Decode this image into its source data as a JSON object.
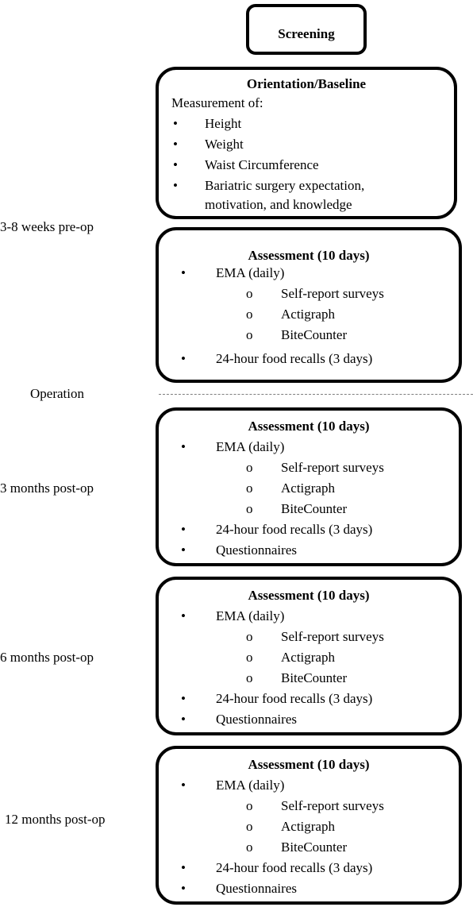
{
  "screening": {
    "title": "Screening"
  },
  "baseline": {
    "title": "Orientation/Baseline",
    "intro": "Measurement of:",
    "items": [
      "Height",
      "Weight",
      "Waist Circumference",
      "Bariatric surgery expectation,",
      "motivation, and knowledge"
    ]
  },
  "bullet": "•",
  "sub_bullet": "o",
  "timepoints": {
    "pre_op": "3-8 weeks pre-op",
    "operation": "Operation",
    "post_3": "3 months post-op",
    "post_6": "6 months post-op",
    "post_12": "12 months post-op"
  },
  "assessments": [
    {
      "title": "Assessment (10 days)",
      "ema": "EMA (daily)",
      "sub": [
        "Self-report surveys",
        "Actigraph",
        "BiteCounter"
      ],
      "recalls": "24-hour food recalls (3 days)"
    },
    {
      "title": "Assessment (10 days)",
      "ema": "EMA (daily)",
      "sub": [
        "Self-report surveys",
        "Actigraph",
        "BiteCounter"
      ],
      "recalls": "24-hour food recalls (3 days)",
      "questionnaires": "Questionnaires"
    },
    {
      "title": "Assessment (10 days)",
      "ema": "EMA (daily)",
      "sub": [
        "Self-report surveys",
        "Actigraph",
        "BiteCounter"
      ],
      "recalls": "24-hour food recalls (3 days)",
      "questionnaires": "Questionnaires"
    },
    {
      "title": "Assessment (10 days)",
      "ema": "EMA (daily)",
      "sub": [
        "Self-report surveys",
        "Actigraph",
        "BiteCounter"
      ],
      "recalls": "24-hour food recalls (3 days)",
      "questionnaires": "Questionnaires"
    }
  ]
}
